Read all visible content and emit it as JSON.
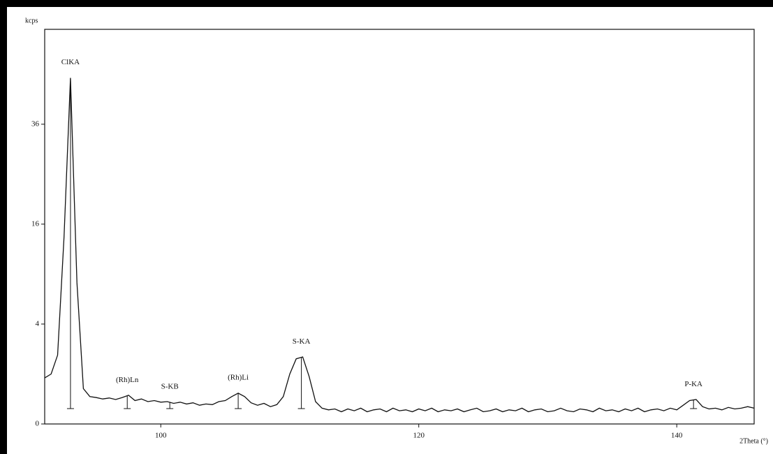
{
  "chart_data": {
    "type": "line",
    "ylabel": "kcps",
    "xlabel": "2Theta (°)",
    "yscale": "sqrt",
    "color": "#111111",
    "xlim": [
      91,
      146
    ],
    "ylim": [
      0,
      62.4
    ],
    "xticks": [
      100,
      120,
      140
    ],
    "yticks": [
      0,
      4,
      16,
      36
    ],
    "x": [
      91,
      91.5,
      92,
      92.5,
      93,
      93.5,
      94,
      94.5,
      95,
      95.5,
      96,
      96.5,
      97,
      97.5,
      98,
      98.5,
      99,
      99.5,
      100,
      100.5,
      101,
      101.5,
      102,
      102.5,
      103,
      103.5,
      104,
      104.5,
      105,
      105.5,
      106,
      106.5,
      107,
      107.5,
      108,
      108.5,
      109,
      109.5,
      110,
      110.5,
      111,
      111.5,
      112,
      112.5,
      113,
      113.5,
      114,
      114.5,
      115,
      115.5,
      116,
      116.5,
      117,
      117.5,
      118,
      118.5,
      119,
      119.5,
      120,
      120.5,
      121,
      121.5,
      122,
      122.5,
      123,
      123.5,
      124,
      124.5,
      125,
      125.5,
      126,
      126.5,
      127,
      127.5,
      128,
      128.5,
      129,
      129.5,
      130,
      130.5,
      131,
      131.5,
      132,
      132.5,
      133,
      133.5,
      134,
      134.5,
      135,
      135.5,
      136,
      136.5,
      137,
      137.5,
      138,
      138.5,
      139,
      139.5,
      140,
      140.5,
      141,
      141.5,
      142,
      142.5,
      143,
      143.5,
      144,
      144.5,
      145,
      145.5,
      146
    ],
    "values": [
      0.85,
      1.0,
      1.9,
      14,
      48,
      8,
      0.5,
      0.3,
      0.28,
      0.25,
      0.27,
      0.24,
      0.28,
      0.33,
      0.22,
      0.25,
      0.2,
      0.22,
      0.19,
      0.2,
      0.17,
      0.19,
      0.16,
      0.18,
      0.14,
      0.16,
      0.15,
      0.2,
      0.22,
      0.3,
      0.38,
      0.3,
      0.18,
      0.14,
      0.17,
      0.12,
      0.15,
      0.3,
      1.0,
      1.7,
      1.8,
      0.9,
      0.2,
      0.1,
      0.08,
      0.09,
      0.06,
      0.09,
      0.07,
      0.1,
      0.06,
      0.08,
      0.09,
      0.06,
      0.1,
      0.07,
      0.08,
      0.06,
      0.09,
      0.07,
      0.1,
      0.06,
      0.08,
      0.07,
      0.09,
      0.06,
      0.08,
      0.1,
      0.06,
      0.07,
      0.09,
      0.06,
      0.08,
      0.07,
      0.1,
      0.06,
      0.08,
      0.09,
      0.06,
      0.07,
      0.1,
      0.07,
      0.06,
      0.09,
      0.08,
      0.06,
      0.1,
      0.07,
      0.08,
      0.06,
      0.09,
      0.07,
      0.1,
      0.06,
      0.08,
      0.09,
      0.07,
      0.1,
      0.08,
      0.14,
      0.22,
      0.24,
      0.12,
      0.09,
      0.1,
      0.08,
      0.11,
      0.09,
      0.1,
      0.12,
      0.1
    ],
    "annotations": [
      {
        "text": "ClKA",
        "x": 93
      },
      {
        "text": "(Rh)Ln",
        "x": 97.4
      },
      {
        "text": "S-KB",
        "x": 100.7
      },
      {
        "text": "(Rh)Li",
        "x": 106
      },
      {
        "text": "S-KA",
        "x": 110.9
      },
      {
        "text": "P-KA",
        "x": 141.3
      }
    ]
  }
}
